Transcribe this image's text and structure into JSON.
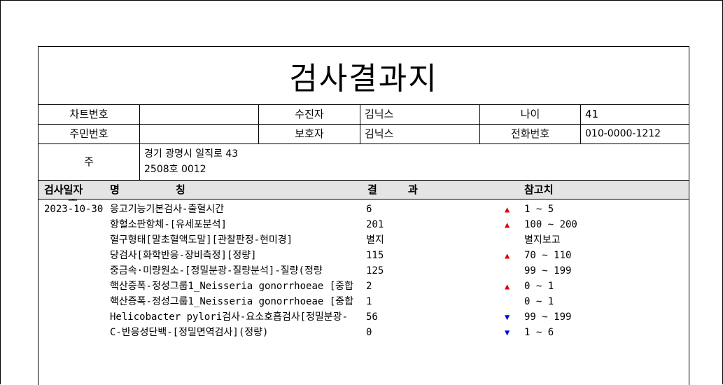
{
  "document": {
    "title": "검사결과지"
  },
  "patient_info": {
    "chart_no_label": "차트번호",
    "chart_no_value": "",
    "examinee_label": "수진자",
    "examinee_value": "김닉스",
    "age_label": "나이",
    "age_value": "41",
    "resident_no_label": "주민번호",
    "resident_no_value": "",
    "guardian_label": "보호자",
    "guardian_value": "김닉스",
    "phone_label": "전화번호",
    "phone_value": "010-0000-1212",
    "address_label": "주 소",
    "address_line1": "경기 광명시 일직로 43",
    "address_line2": "2508호 0012"
  },
  "table_header": {
    "date": "검사일자",
    "name_1": "명",
    "name_2": "칭",
    "result_1": "결",
    "result_2": "과",
    "reference": "참고치"
  },
  "colors": {
    "flag_high": "#e00000",
    "flag_low": "#0000e0",
    "header_bg": "#e4e4e4"
  },
  "results": [
    {
      "date": "2023-10-30",
      "name": "응고기능기본검사-출혈시간",
      "result": "6",
      "flag": "high",
      "flag_symbol": "▲",
      "reference": "1 ~ 5"
    },
    {
      "date": "",
      "name": "항혈소판항체-[유세포분석]",
      "result": "201",
      "flag": "high",
      "flag_symbol": "▲",
      "reference": "100 ~ 200"
    },
    {
      "date": "",
      "name": "혈구형태[말초혈액도말][관찰판정-현미경]",
      "result": "별지",
      "flag": "",
      "flag_symbol": "",
      "reference": "별지보고"
    },
    {
      "date": "",
      "name": "당검사[화학반응-장비측정][정량]",
      "result": "115",
      "flag": "high",
      "flag_symbol": "▲",
      "reference": "70 ~ 110"
    },
    {
      "date": "",
      "name": "중금속·미량원소-[정밀분광-질량분석]-질량(정량",
      "result": "125",
      "flag": "",
      "flag_symbol": "",
      "reference": "99 ~ 199"
    },
    {
      "date": "",
      "name": "핵산증폭-정성그룹1_Neisseria gonorrhoeae [중합",
      "result": "2",
      "flag": "high",
      "flag_symbol": "▲",
      "reference": "0 ~ 1"
    },
    {
      "date": "",
      "name": "핵산증폭-정성그룹1_Neisseria gonorrhoeae [중합",
      "result": "1",
      "flag": "",
      "flag_symbol": "",
      "reference": "0 ~ 1"
    },
    {
      "date": "",
      "name": "Helicobacter pylori검사-요소호흡검사[정밀분광-",
      "result": "56",
      "flag": "low",
      "flag_symbol": "▼",
      "reference": "99 ~ 199"
    },
    {
      "date": "",
      "name": "C-반응성단백-[정밀면역검사](정량)",
      "result": "0",
      "flag": "low",
      "flag_symbol": "▼",
      "reference": "1 ~ 6"
    }
  ]
}
